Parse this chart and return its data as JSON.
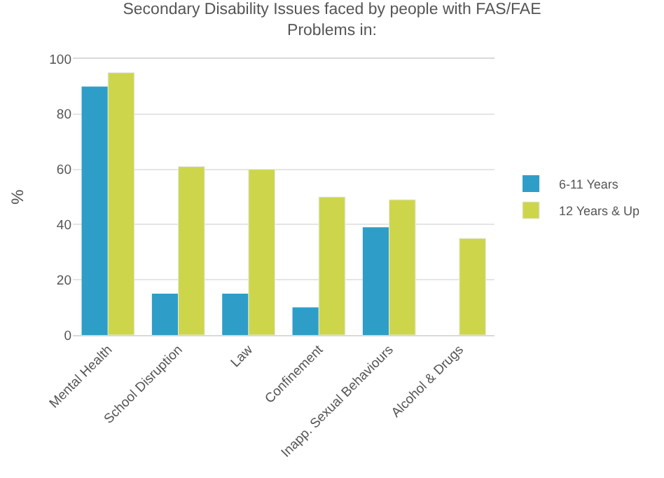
{
  "chart_data": {
    "type": "bar",
    "title": "Secondary Disability Issues faced by people with FAS/FAE\nProblems in:",
    "ylabel": "%",
    "categories": [
      "Mental Health",
      "School Disruption",
      "Law",
      "Confinement",
      "Inapp. Sexual Behaviours",
      "Alcohol & Drugs"
    ],
    "series": [
      {
        "name": "6-11 Years",
        "color": "#2e9ec8",
        "values": [
          90,
          15,
          15,
          10,
          39,
          null
        ]
      },
      {
        "name": "12 Years & Up",
        "color": "#cdd64a",
        "values": [
          95,
          61,
          60,
          50,
          49,
          35
        ]
      }
    ],
    "ylim": [
      0,
      100
    ],
    "yticks": [
      0,
      20,
      40,
      60,
      80,
      100
    ],
    "grid": "y",
    "legend": "right"
  }
}
